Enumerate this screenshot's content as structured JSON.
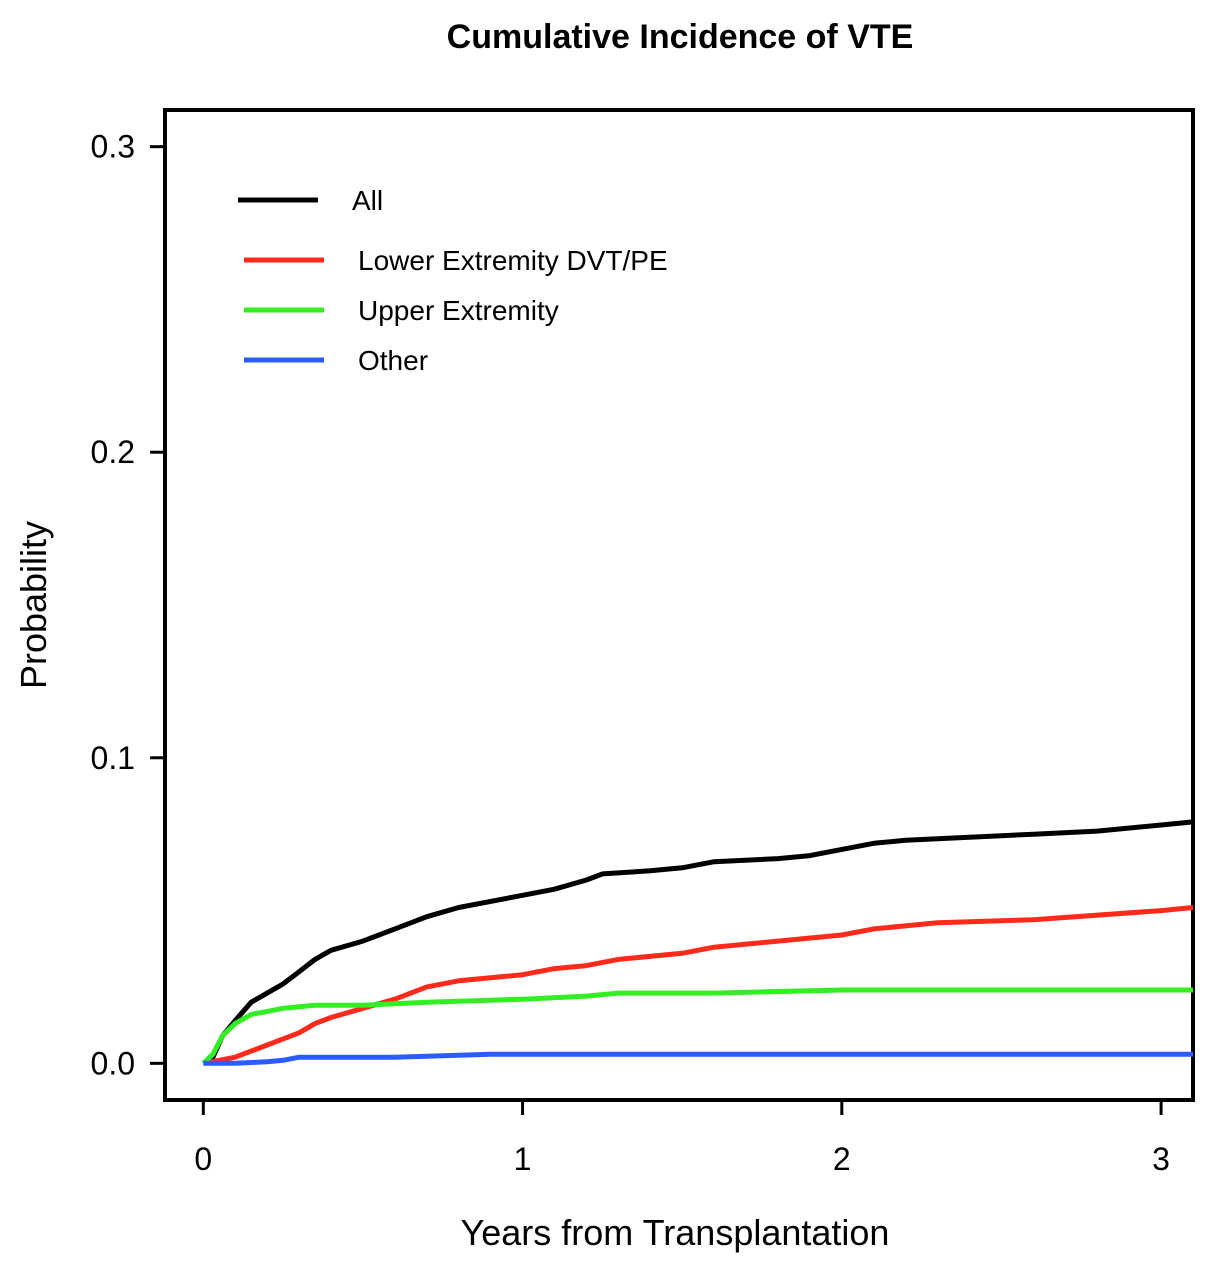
{
  "chart_data": {
    "type": "line",
    "title": "Cumulative Incidence of VTE",
    "xlabel": "Years from Transplantation",
    "ylabel": "Probability",
    "xlim": [
      -0.12,
      3.1
    ],
    "ylim": [
      -0.012,
      0.312
    ],
    "xticks": [
      0,
      1,
      2,
      3
    ],
    "yticks": [
      0.0,
      0.1,
      0.2,
      0.3
    ],
    "xtick_labels": [
      "0",
      "1",
      "2",
      "3"
    ],
    "ytick_labels": [
      "0.0",
      "0.1",
      "0.2",
      "0.3"
    ],
    "legend_position": "top-left",
    "series": [
      {
        "name": "All",
        "color": "#000000",
        "x": [
          0,
          0.03,
          0.06,
          0.1,
          0.15,
          0.2,
          0.25,
          0.3,
          0.35,
          0.4,
          0.5,
          0.6,
          0.7,
          0.8,
          0.9,
          1.0,
          1.1,
          1.2,
          1.25,
          1.4,
          1.5,
          1.6,
          1.8,
          1.9,
          2.0,
          2.1,
          2.2,
          2.4,
          2.6,
          2.8,
          3.0,
          3.1
        ],
        "y": [
          0,
          0.002,
          0.009,
          0.014,
          0.02,
          0.023,
          0.026,
          0.03,
          0.034,
          0.037,
          0.04,
          0.044,
          0.048,
          0.051,
          0.053,
          0.055,
          0.057,
          0.06,
          0.062,
          0.063,
          0.064,
          0.066,
          0.067,
          0.068,
          0.07,
          0.072,
          0.073,
          0.074,
          0.075,
          0.076,
          0.078,
          0.079
        ]
      },
      {
        "name": "Lower Extremity DVT/PE",
        "color": "#ff2a1a",
        "x": [
          0,
          0.05,
          0.1,
          0.15,
          0.2,
          0.25,
          0.3,
          0.35,
          0.4,
          0.5,
          0.6,
          0.65,
          0.7,
          0.8,
          0.9,
          1.0,
          1.1,
          1.2,
          1.3,
          1.5,
          1.6,
          1.8,
          2.0,
          2.1,
          2.3,
          2.6,
          3.0,
          3.1
        ],
        "y": [
          0,
          0.001,
          0.002,
          0.004,
          0.006,
          0.008,
          0.01,
          0.013,
          0.015,
          0.018,
          0.021,
          0.023,
          0.025,
          0.027,
          0.028,
          0.029,
          0.031,
          0.032,
          0.034,
          0.036,
          0.038,
          0.04,
          0.042,
          0.044,
          0.046,
          0.047,
          0.05,
          0.051
        ]
      },
      {
        "name": "Upper Extremity",
        "color": "#33ee22",
        "x": [
          0,
          0.03,
          0.06,
          0.1,
          0.15,
          0.2,
          0.25,
          0.35,
          0.5,
          0.7,
          1.0,
          1.2,
          1.3,
          1.6,
          2.0,
          2.5,
          3.0,
          3.1
        ],
        "y": [
          0,
          0.003,
          0.009,
          0.013,
          0.016,
          0.017,
          0.018,
          0.019,
          0.019,
          0.02,
          0.021,
          0.022,
          0.023,
          0.023,
          0.024,
          0.024,
          0.024,
          0.024
        ]
      },
      {
        "name": "Other",
        "color": "#2a5cff",
        "x": [
          0,
          0.1,
          0.2,
          0.25,
          0.3,
          0.35,
          0.6,
          0.9,
          1.5,
          2.0,
          2.5,
          3.0,
          3.1
        ],
        "y": [
          0,
          0,
          0.0005,
          0.001,
          0.002,
          0.002,
          0.002,
          0.003,
          0.003,
          0.003,
          0.003,
          0.003,
          0.003
        ]
      }
    ]
  }
}
